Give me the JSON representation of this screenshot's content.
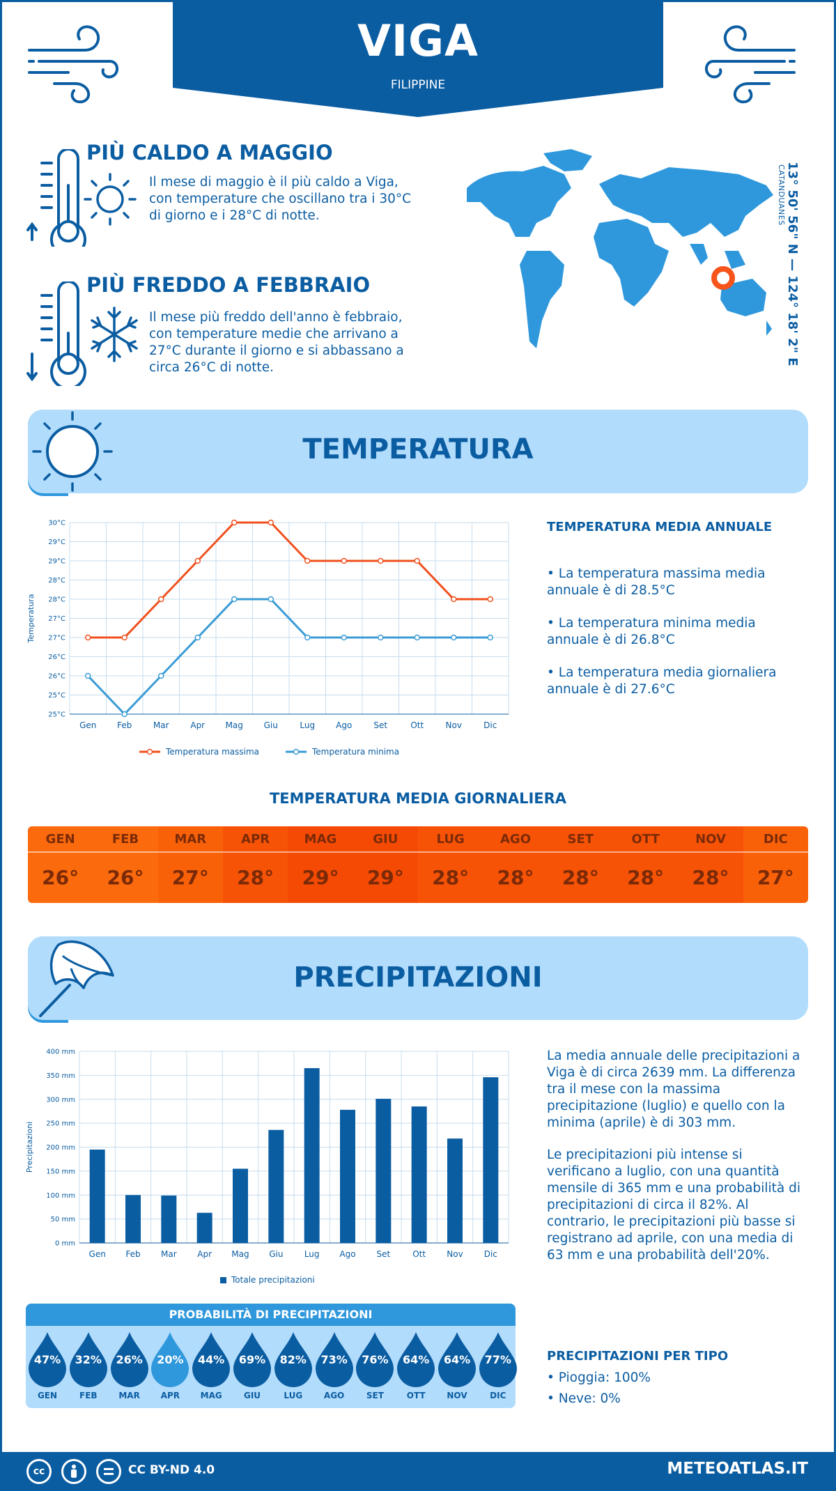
{
  "header": {
    "title": "VIGA",
    "subtitle": "FILIPPINE"
  },
  "hot": {
    "title": "PIÙ CALDO A MAGGIO",
    "text": "Il mese di maggio è il più caldo a Viga, con temperature che oscillano tra i 30°C di giorno e i 28°C di notte."
  },
  "cold": {
    "title": "PIÙ FREDDO A FEBBRAIO",
    "text": "Il mese più freddo dell'anno è febbraio, con temperature medie che arrivano a 27°C durante il giorno e si abbassano a circa 26°C di notte."
  },
  "location": {
    "coords": "13° 50' 56\" N — 124° 18' 2\" E",
    "region": "CATANDUANES"
  },
  "temperature_section": {
    "title": "TEMPERATURA",
    "stats_title": "TEMPERATURA MEDIA ANNUALE",
    "stats": [
      "• La temperatura massima media annuale è di 28.5°C",
      "• La temperatura minima media annuale è di 26.8°C",
      "• La temperatura media giornaliera annuale è di 27.6°C"
    ],
    "daily_title": "TEMPERATURA MEDIA GIORNALIERA",
    "daily": [
      {
        "month": "GEN",
        "value": "26°",
        "color": "#fb6a0d"
      },
      {
        "month": "FEB",
        "value": "26°",
        "color": "#fb6a0d"
      },
      {
        "month": "MAR",
        "value": "27°",
        "color": "#f96109"
      },
      {
        "month": "APR",
        "value": "28°",
        "color": "#f75306"
      },
      {
        "month": "MAG",
        "value": "29°",
        "color": "#f54a04"
      },
      {
        "month": "GIU",
        "value": "29°",
        "color": "#f54a04"
      },
      {
        "month": "LUG",
        "value": "28°",
        "color": "#f75306"
      },
      {
        "month": "AGO",
        "value": "28°",
        "color": "#f75306"
      },
      {
        "month": "SET",
        "value": "28°",
        "color": "#f75306"
      },
      {
        "month": "OTT",
        "value": "28°",
        "color": "#f75306"
      },
      {
        "month": "NOV",
        "value": "28°",
        "color": "#f75306"
      },
      {
        "month": "DIC",
        "value": "27°",
        "color": "#f96109"
      }
    ]
  },
  "precip_section": {
    "title": "PRECIPITAZIONI",
    "text1": "La media annuale delle precipitazioni a Viga è di circa 2639 mm. La differenza tra il mese con la massima precipitazione (luglio) e quello con la minima (aprile) è di 303 mm.",
    "text2": "Le precipitazioni più intense si verificano a luglio, con una quantità mensile di 365 mm e una probabilità di precipitazioni di circa il 82%. Al contrario, le precipitazioni più basse si registrano ad aprile, con una media di 63 mm e una probabilità dell'20%.",
    "prob_title": "PROBABILITÀ DI PRECIPITAZIONI",
    "probs": [
      {
        "month": "GEN",
        "value": "47%"
      },
      {
        "month": "FEB",
        "value": "32%"
      },
      {
        "month": "MAR",
        "value": "26%"
      },
      {
        "month": "APR",
        "value": "20%"
      },
      {
        "month": "MAG",
        "value": "44%"
      },
      {
        "month": "GIU",
        "value": "69%"
      },
      {
        "month": "LUG",
        "value": "82%"
      },
      {
        "month": "AGO",
        "value": "73%"
      },
      {
        "month": "SET",
        "value": "76%"
      },
      {
        "month": "OTT",
        "value": "64%"
      },
      {
        "month": "NOV",
        "value": "64%"
      },
      {
        "month": "DIC",
        "value": "77%"
      }
    ],
    "type_title": "PRECIPITAZIONI PER TIPO",
    "types": [
      "• Pioggia: 100%",
      "• Neve: 0%"
    ]
  },
  "footer": {
    "license": "CC BY-ND 4.0",
    "site": "METEOATLAS.IT"
  },
  "colors": {
    "primary": "#0b5da2",
    "light": "#b2dcfc",
    "accent": "#2f98dc",
    "max_line": "#f0501e",
    "min_line": "#3a9bd5",
    "bar": "#0b5da2"
  },
  "chart_data": [
    {
      "type": "line",
      "categories": [
        "Gen",
        "Feb",
        "Mar",
        "Apr",
        "Mag",
        "Giu",
        "Lug",
        "Ago",
        "Set",
        "Ott",
        "Nov",
        "Dic"
      ],
      "series": [
        {
          "name": "Temperatura massima",
          "values": [
            27,
            27,
            28,
            29,
            30,
            30,
            29,
            29,
            29,
            29,
            28,
            28
          ]
        },
        {
          "name": "Temperatura minima",
          "values": [
            26,
            25,
            26,
            27,
            28,
            28,
            27,
            27,
            27,
            27,
            27,
            27
          ]
        }
      ],
      "yticks": [
        "25°C",
        "25°C",
        "26°C",
        "26°C",
        "27°C",
        "27°C",
        "28°C",
        "28°C",
        "29°C",
        "29°C",
        "30°C"
      ],
      "ylim": [
        25,
        30
      ],
      "ylabel": "Temperatura",
      "xlabel": "",
      "legend": "bottom",
      "grid": true
    },
    {
      "type": "bar",
      "categories": [
        "Gen",
        "Feb",
        "Mar",
        "Apr",
        "Mag",
        "Giu",
        "Lug",
        "Ago",
        "Set",
        "Ott",
        "Nov",
        "Dic"
      ],
      "series": [
        {
          "name": "Totale precipitazioni",
          "values": [
            195,
            100,
            99,
            63,
            155,
            236,
            365,
            278,
            301,
            285,
            218,
            346
          ]
        }
      ],
      "yticks": [
        "0 mm",
        "50 mm",
        "100 mm",
        "150 mm",
        "200 mm",
        "250 mm",
        "300 mm",
        "350 mm",
        "400 mm"
      ],
      "ylim": [
        0,
        400
      ],
      "ylabel": "Precipitazioni",
      "xlabel": "",
      "legend": "bottom",
      "grid": true
    }
  ]
}
